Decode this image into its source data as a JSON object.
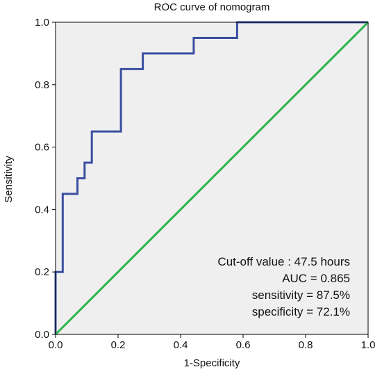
{
  "chart_data": {
    "type": "line",
    "title": "ROC curve of nomogram",
    "xlabel": "1-Specificity",
    "ylabel": "Sensitivity",
    "xlim": [
      0.0,
      1.0
    ],
    "ylim": [
      0.0,
      1.0
    ],
    "x_ticks": [
      "0.0",
      "0.2",
      "0.4",
      "0.6",
      "0.8",
      "1.0"
    ],
    "y_ticks": [
      "0.0",
      "0.2",
      "0.4",
      "0.6",
      "0.8",
      "1.0"
    ],
    "grid": false,
    "plot_background": "#efefef",
    "series": [
      {
        "color": "#3a4fa0",
        "x": [
          0.0,
          0.0,
          0.023,
          0.023,
          0.07,
          0.07,
          0.093,
          0.093,
          0.116,
          0.116,
          0.209,
          0.209,
          0.279,
          0.279,
          0.442,
          0.442,
          0.581,
          0.581,
          1.0
        ],
        "y": [
          0.0,
          0.2,
          0.2,
          0.45,
          0.45,
          0.5,
          0.5,
          0.55,
          0.55,
          0.65,
          0.65,
          0.85,
          0.85,
          0.9,
          0.9,
          0.95,
          0.95,
          1.0,
          1.0
        ]
      },
      {
        "color": "#2db34a",
        "x": [
          0.0,
          1.0
        ],
        "y": [
          0.0,
          1.0
        ]
      }
    ],
    "annotations": [
      "Cut-off value : 47.5 hours",
      "AUC = 0.865",
      "sensitivity = 87.5%",
      "specificity = 72.1%"
    ]
  }
}
